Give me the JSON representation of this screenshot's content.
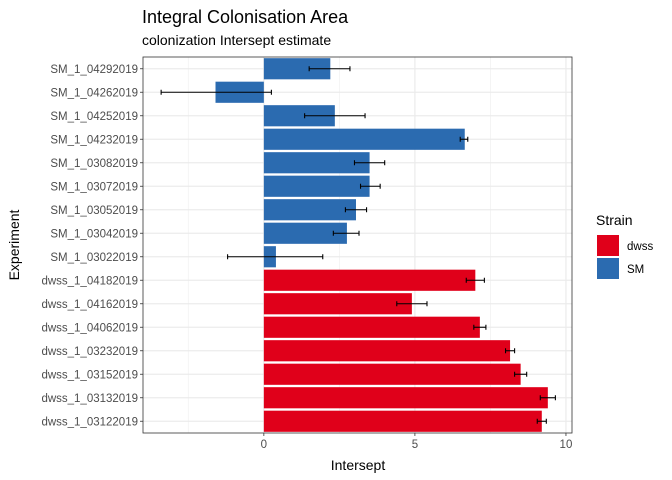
{
  "chart_data": {
    "type": "bar",
    "orientation": "horizontal",
    "title": "Integral Colonisation Area",
    "subtitle": "colonization Intersept estimate",
    "xlabel": "Intersept",
    "ylabel": "Experiment",
    "xlim": [
      -4,
      10.2
    ],
    "xticks": [
      0,
      5,
      10
    ],
    "grid": true,
    "legend": {
      "title": "Strain",
      "position": "right",
      "entries": [
        {
          "name": "dwss",
          "color": "#e0001a"
        },
        {
          "name": "SM",
          "color": "#2b6bb0"
        }
      ]
    },
    "bars": [
      {
        "label": "SM_1_04292019",
        "strain": "SM",
        "value": 2.2,
        "err_low": 1.5,
        "err_high": 2.85
      },
      {
        "label": "SM_1_04262019",
        "strain": "SM",
        "value": -1.6,
        "err_low": -3.4,
        "err_high": 0.25
      },
      {
        "label": "SM_1_04252019",
        "strain": "SM",
        "value": 2.35,
        "err_low": 1.35,
        "err_high": 3.35
      },
      {
        "label": "SM_1_04232019",
        "strain": "SM",
        "value": 6.65,
        "err_low": 6.5,
        "err_high": 6.75
      },
      {
        "label": "SM_1_03082019",
        "strain": "SM",
        "value": 3.5,
        "err_low": 3.0,
        "err_high": 4.0
      },
      {
        "label": "SM_1_03072019",
        "strain": "SM",
        "value": 3.5,
        "err_low": 3.2,
        "err_high": 3.85
      },
      {
        "label": "SM_1_03052019",
        "strain": "SM",
        "value": 3.05,
        "err_low": 2.7,
        "err_high": 3.4
      },
      {
        "label": "SM_1_03042019",
        "strain": "SM",
        "value": 2.75,
        "err_low": 2.3,
        "err_high": 3.15
      },
      {
        "label": "SM_1_03022019",
        "strain": "SM",
        "value": 0.4,
        "err_low": -1.2,
        "err_high": 1.95
      },
      {
        "label": "dwss_1_04182019",
        "strain": "dwss",
        "value": 7.0,
        "err_low": 6.7,
        "err_high": 7.3
      },
      {
        "label": "dwss_1_04162019",
        "strain": "dwss",
        "value": 4.9,
        "err_low": 4.4,
        "err_high": 5.4
      },
      {
        "label": "dwss_1_04062019",
        "strain": "dwss",
        "value": 7.15,
        "err_low": 6.95,
        "err_high": 7.35
      },
      {
        "label": "dwss_1_03232019",
        "strain": "dwss",
        "value": 8.15,
        "err_low": 8.0,
        "err_high": 8.3
      },
      {
        "label": "dwss_1_03152019",
        "strain": "dwss",
        "value": 8.5,
        "err_low": 8.3,
        "err_high": 8.7
      },
      {
        "label": "dwss_1_03132019",
        "strain": "dwss",
        "value": 9.4,
        "err_low": 9.15,
        "err_high": 9.65
      },
      {
        "label": "dwss_1_03122019",
        "strain": "dwss",
        "value": 9.2,
        "err_low": 9.05,
        "err_high": 9.35
      }
    ]
  }
}
